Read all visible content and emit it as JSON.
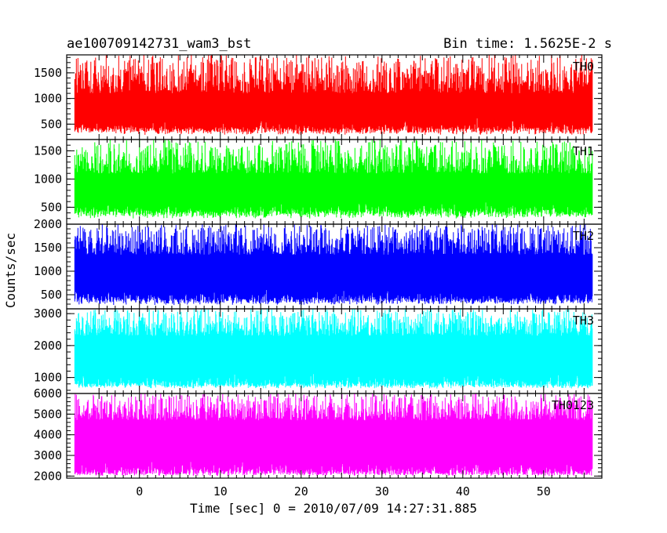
{
  "chart_data": {
    "type": "line",
    "title": "ae100709142731_wam3_bst",
    "subtitle": "Bin time: 1.5625E-2 s",
    "xlabel": "Time [sec] 0 = 2010/07/09 14:27:31.885",
    "ylabel": "Counts/sec",
    "xlim": [
      -9,
      57.2
    ],
    "x_range_data": [
      -8,
      56
    ],
    "x_ticks": [
      0,
      10,
      20,
      30,
      40,
      50
    ],
    "x_tick_labels": [
      "0",
      "10",
      "20",
      "30",
      "40",
      "50"
    ],
    "grid": false,
    "legend": "none",
    "panels": [
      {
        "name": "TH0",
        "color": "#ff0000",
        "ylim": [
          200,
          1850
        ],
        "y_ticks": [
          500,
          1000,
          1500
        ],
        "y_tick_labels": [
          "500",
          "1000",
          "1500"
        ],
        "envelope": {
          "mean": 830,
          "low_min": 290,
          "low_max": 560,
          "high_min": 1100,
          "high_max": 1850
        }
      },
      {
        "name": "TH1",
        "color": "#00ff00",
        "ylim": [
          200,
          1700
        ],
        "y_ticks": [
          500,
          1000,
          1500
        ],
        "y_tick_labels": [
          "500",
          "1000",
          "1500"
        ],
        "envelope": {
          "mean": 900,
          "low_min": 300,
          "low_max": 550,
          "high_min": 1100,
          "high_max": 1700
        }
      },
      {
        "name": "TH2",
        "color": "#0000ff",
        "ylim": [
          200,
          2000
        ],
        "y_ticks": [
          500,
          1000,
          1500,
          2000
        ],
        "y_tick_labels": [
          "500",
          "1000",
          "1500",
          "2000"
        ],
        "envelope": {
          "mean": 950,
          "low_min": 280,
          "low_max": 600,
          "high_min": 1350,
          "high_max": 2000
        }
      },
      {
        "name": "TH3",
        "color": "#00ffff",
        "ylim": [
          500,
          3150
        ],
        "y_ticks": [
          1000,
          2000,
          3000
        ],
        "y_tick_labels": [
          "1000",
          "2000",
          "3000"
        ],
        "envelope": {
          "mean": 1750,
          "low_min": 650,
          "low_max": 1100,
          "high_min": 2300,
          "high_max": 3150
        }
      },
      {
        "name": "TH0123",
        "color": "#ff00ff",
        "ylim": [
          1900,
          6000
        ],
        "y_ticks": [
          2000,
          3000,
          4000,
          5000,
          6000
        ],
        "y_tick_labels": [
          "2000",
          "3000",
          "4000",
          "5000",
          "6000"
        ],
        "envelope": {
          "mean": 3800,
          "low_min": 2000,
          "low_max": 2800,
          "high_min": 4700,
          "high_max": 6000
        }
      }
    ]
  }
}
